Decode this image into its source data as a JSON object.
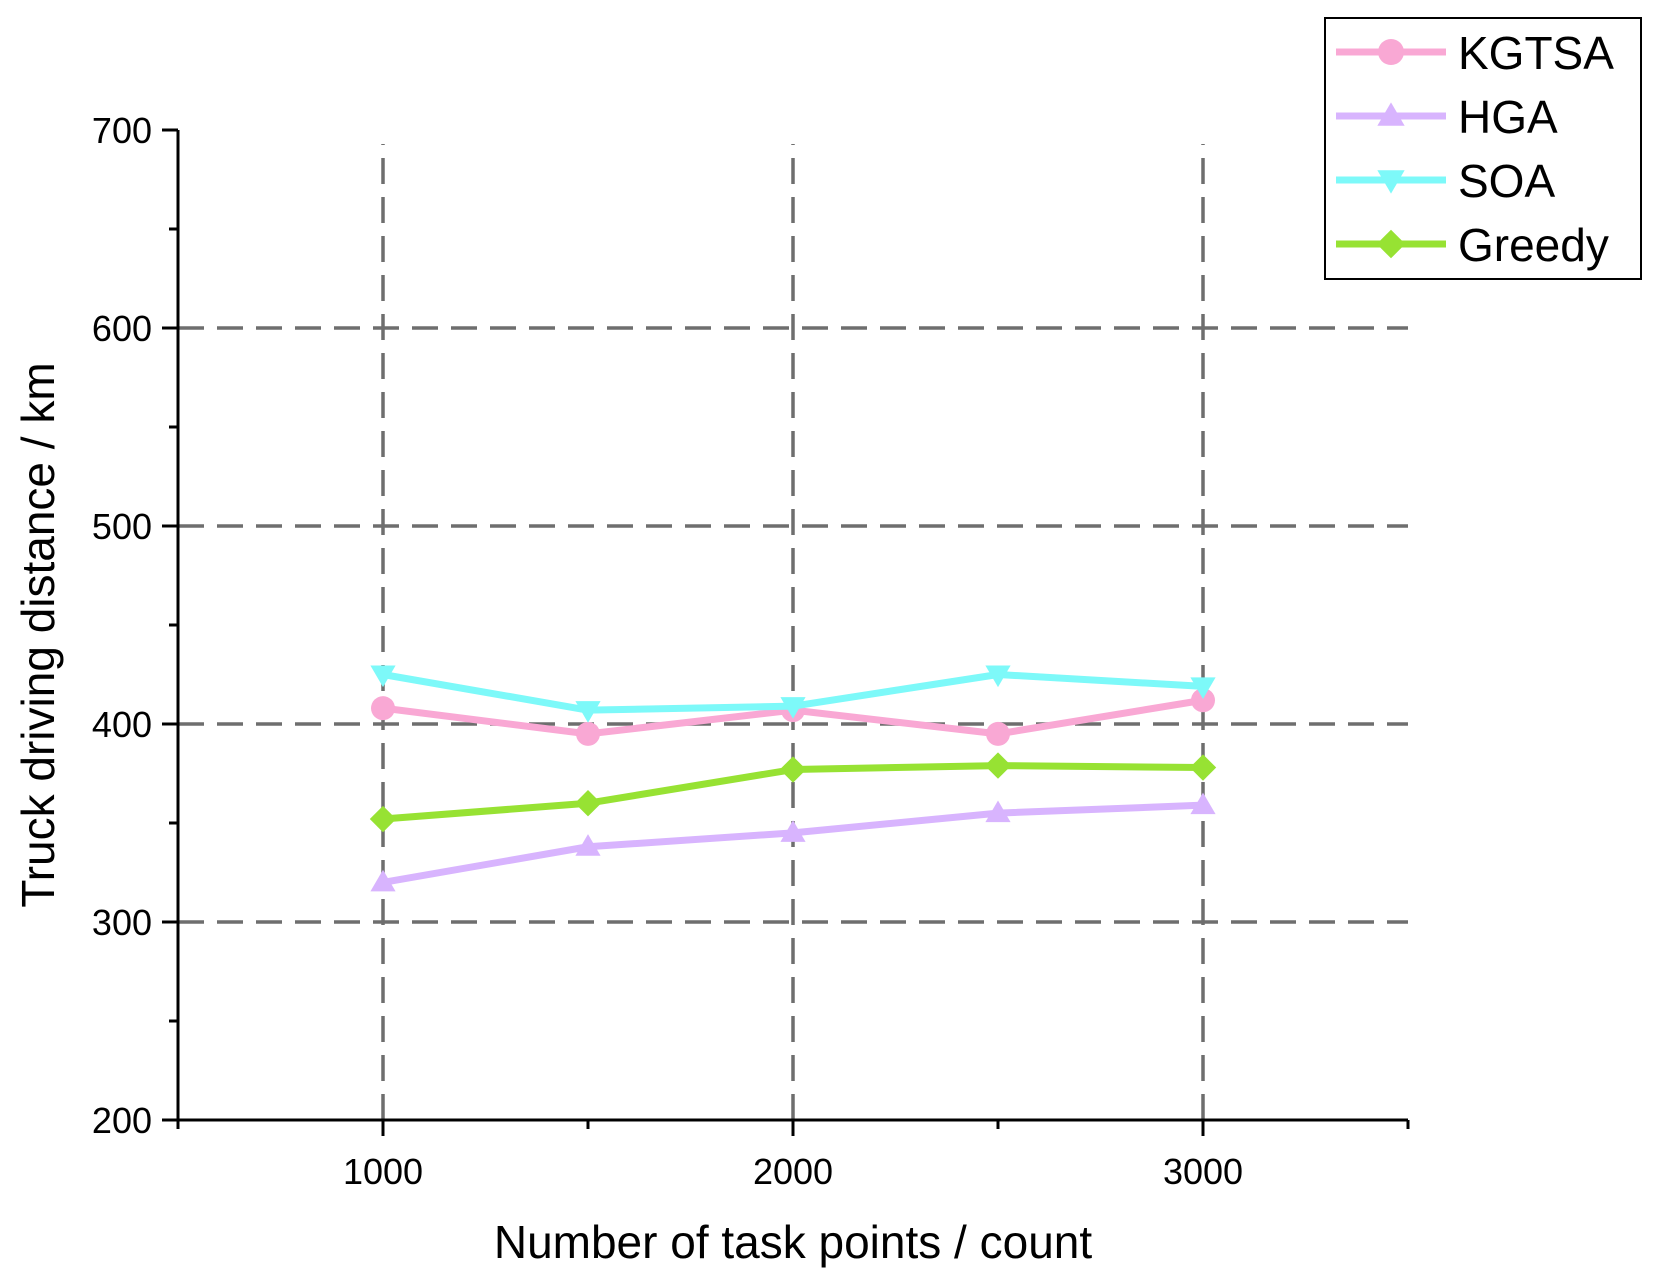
{
  "chart_data": {
    "type": "line",
    "title": "",
    "xlabel": "Number of task points / count",
    "ylabel": "Truck driving distance / km",
    "xlim": [
      500,
      3500
    ],
    "ylim": [
      200,
      700
    ],
    "x_ticks": [
      1000,
      2000,
      3000
    ],
    "y_ticks": [
      200,
      300,
      400,
      500,
      600,
      700
    ],
    "grid": true,
    "grid_style": "dashed",
    "legend_position": "top-right",
    "x": [
      1000,
      1500,
      2000,
      2500,
      3000
    ],
    "series": [
      {
        "name": "KGTSA",
        "color": "#f9a8d4",
        "marker": "circle",
        "values": [
          408,
          395,
          407,
          395,
          412
        ]
      },
      {
        "name": "HGA",
        "color": "#d8b4fe",
        "marker": "triangle-up",
        "values": [
          320,
          338,
          345,
          355,
          359
        ]
      },
      {
        "name": "SOA",
        "color": "#7df9f9",
        "marker": "triangle-down",
        "values": [
          425,
          407,
          409,
          425,
          419
        ]
      },
      {
        "name": "Greedy",
        "color": "#97e233",
        "marker": "diamond",
        "values": [
          352,
          360,
          377,
          379,
          378
        ]
      }
    ]
  }
}
